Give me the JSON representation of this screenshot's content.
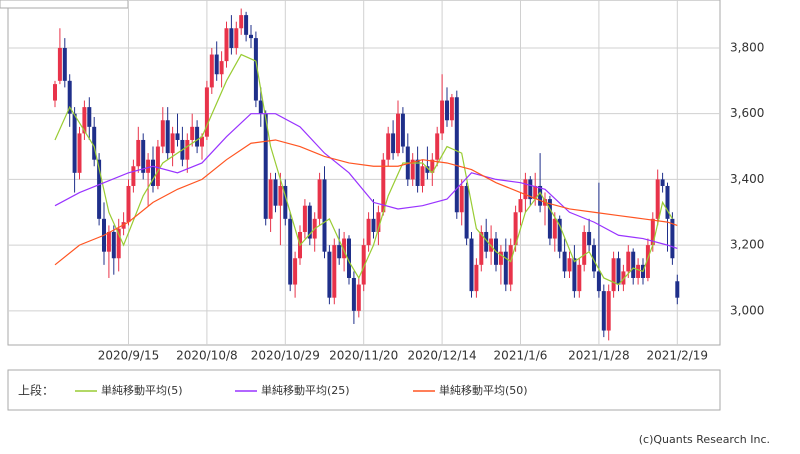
{
  "chart_data": {
    "type": "candlestick",
    "legend_prefix": "上段：",
    "footer": "(c)Quants Research Inc.",
    "up_color": "#e8334a",
    "down_color": "#1f2f8a",
    "ylim": [
      2896,
      3946
    ],
    "yticks": [
      {
        "value": 3000,
        "label": "3,000"
      },
      {
        "value": 3200,
        "label": "3,200"
      },
      {
        "value": 3400,
        "label": "3,400"
      },
      {
        "value": 3600,
        "label": "3,600"
      },
      {
        "value": 3800,
        "label": "3,800"
      }
    ],
    "grid": true,
    "categories": [
      null,
      null,
      null,
      null,
      null,
      null,
      null,
      null,
      null,
      null,
      null,
      null,
      null,
      null,
      null,
      "2020/9/15",
      null,
      null,
      null,
      null,
      null,
      null,
      null,
      null,
      null,
      null,
      null,
      null,
      null,
      null,
      null,
      "2020/10/8",
      null,
      null,
      null,
      null,
      null,
      null,
      null,
      null,
      null,
      null,
      null,
      null,
      null,
      null,
      null,
      "2020/10/29",
      null,
      null,
      null,
      null,
      null,
      null,
      null,
      null,
      null,
      null,
      null,
      null,
      null,
      null,
      null,
      "2020/11/20",
      null,
      null,
      null,
      null,
      null,
      null,
      null,
      null,
      null,
      null,
      null,
      null,
      null,
      null,
      null,
      "2020/12/14",
      null,
      null,
      null,
      null,
      null,
      null,
      null,
      null,
      null,
      null,
      null,
      null,
      null,
      null,
      null,
      "2021/1/6",
      null,
      null,
      null,
      null,
      null,
      null,
      null,
      null,
      null,
      null,
      null,
      null,
      null,
      null,
      null,
      "2021/1/28",
      null,
      null,
      null,
      null,
      null,
      null,
      null,
      null,
      null,
      null,
      null,
      null,
      null,
      null,
      null,
      "2021/2/19"
    ],
    "ohlc": [
      [
        3640,
        3700,
        3620,
        3690
      ],
      [
        3700,
        3860,
        3690,
        3800
      ],
      [
        3800,
        3830,
        3680,
        3700
      ],
      [
        3700,
        3720,
        3560,
        3600
      ],
      [
        3600,
        3620,
        3360,
        3420
      ],
      [
        3420,
        3560,
        3400,
        3540
      ],
      [
        3540,
        3640,
        3520,
        3620
      ],
      [
        3620,
        3650,
        3520,
        3560
      ],
      [
        3560,
        3590,
        3440,
        3460
      ],
      [
        3460,
        3480,
        3260,
        3280
      ],
      [
        3280,
        3330,
        3140,
        3180
      ],
      [
        3180,
        3260,
        3100,
        3240
      ],
      [
        3240,
        3260,
        3110,
        3160
      ],
      [
        3160,
        3280,
        3120,
        3250
      ],
      [
        3250,
        3300,
        3230,
        3270
      ],
      [
        3270,
        3400,
        3260,
        3380
      ],
      [
        3380,
        3460,
        3360,
        3440
      ],
      [
        3440,
        3560,
        3420,
        3520
      ],
      [
        3520,
        3540,
        3400,
        3420
      ],
      [
        3420,
        3480,
        3320,
        3460
      ],
      [
        3460,
        3500,
        3360,
        3380
      ],
      [
        3380,
        3520,
        3370,
        3500
      ],
      [
        3500,
        3620,
        3480,
        3580
      ],
      [
        3580,
        3620,
        3460,
        3480
      ],
      [
        3480,
        3560,
        3440,
        3540
      ],
      [
        3540,
        3600,
        3500,
        3520
      ],
      [
        3520,
        3560,
        3440,
        3460
      ],
      [
        3460,
        3540,
        3420,
        3520
      ],
      [
        3520,
        3600,
        3500,
        3560
      ],
      [
        3560,
        3580,
        3480,
        3500
      ],
      [
        3500,
        3540,
        3460,
        3530
      ],
      [
        3530,
        3700,
        3520,
        3680
      ],
      [
        3680,
        3800,
        3660,
        3780
      ],
      [
        3780,
        3820,
        3700,
        3720
      ],
      [
        3720,
        3790,
        3680,
        3760
      ],
      [
        3760,
        3880,
        3740,
        3860
      ],
      [
        3860,
        3900,
        3780,
        3800
      ],
      [
        3800,
        3880,
        3780,
        3860
      ],
      [
        3860,
        3920,
        3840,
        3900
      ],
      [
        3900,
        3910,
        3820,
        3840
      ],
      [
        3840,
        3870,
        3800,
        3830
      ],
      [
        3830,
        3850,
        3620,
        3640
      ],
      [
        3640,
        3680,
        3560,
        3600
      ],
      [
        3600,
        3610,
        3260,
        3280
      ],
      [
        3280,
        3420,
        3240,
        3400
      ],
      [
        3400,
        3420,
        3300,
        3320
      ],
      [
        3320,
        3420,
        3200,
        3380
      ],
      [
        3380,
        3400,
        3260,
        3280
      ],
      [
        3280,
        3300,
        3060,
        3080
      ],
      [
        3080,
        3180,
        3040,
        3160
      ],
      [
        3160,
        3260,
        3140,
        3240
      ],
      [
        3240,
        3340,
        3220,
        3320
      ],
      [
        3320,
        3330,
        3200,
        3220
      ],
      [
        3220,
        3300,
        3180,
        3280
      ],
      [
        3280,
        3420,
        3260,
        3400
      ],
      [
        3400,
        3440,
        3160,
        3180
      ],
      [
        3180,
        3200,
        3020,
        3040
      ],
      [
        3040,
        3220,
        3020,
        3200
      ],
      [
        3200,
        3250,
        3140,
        3160
      ],
      [
        3160,
        3240,
        3120,
        3220
      ],
      [
        3220,
        3230,
        3080,
        3100
      ],
      [
        3100,
        3120,
        2960,
        3000
      ],
      [
        3000,
        3100,
        2980,
        3080
      ],
      [
        3080,
        3220,
        3060,
        3200
      ],
      [
        3200,
        3300,
        3180,
        3280
      ],
      [
        3280,
        3340,
        3220,
        3240
      ],
      [
        3240,
        3320,
        3200,
        3300
      ],
      [
        3300,
        3480,
        3290,
        3460
      ],
      [
        3460,
        3560,
        3440,
        3540
      ],
      [
        3540,
        3580,
        3460,
        3480
      ],
      [
        3480,
        3640,
        3470,
        3600
      ],
      [
        3600,
        3620,
        3480,
        3500
      ],
      [
        3500,
        3540,
        3380,
        3400
      ],
      [
        3400,
        3480,
        3380,
        3460
      ],
      [
        3460,
        3500,
        3360,
        3380
      ],
      [
        3380,
        3460,
        3360,
        3440
      ],
      [
        3440,
        3500,
        3400,
        3420
      ],
      [
        3420,
        3480,
        3380,
        3460
      ],
      [
        3460,
        3560,
        3440,
        3540
      ],
      [
        3540,
        3720,
        3520,
        3640
      ],
      [
        3640,
        3680,
        3560,
        3580
      ],
      [
        3580,
        3660,
        3560,
        3650
      ],
      [
        3650,
        3670,
        3280,
        3300
      ],
      [
        3300,
        3400,
        3260,
        3380
      ],
      [
        3380,
        3390,
        3200,
        3220
      ],
      [
        3220,
        3240,
        3040,
        3060
      ],
      [
        3060,
        3160,
        3040,
        3140
      ],
      [
        3140,
        3260,
        3120,
        3240
      ],
      [
        3240,
        3280,
        3160,
        3180
      ],
      [
        3180,
        3260,
        3140,
        3220
      ],
      [
        3220,
        3240,
        3120,
        3140
      ],
      [
        3140,
        3200,
        3080,
        3180
      ],
      [
        3180,
        3220,
        3060,
        3080
      ],
      [
        3080,
        3220,
        3060,
        3200
      ],
      [
        3200,
        3320,
        3180,
        3300
      ],
      [
        3300,
        3360,
        3260,
        3340
      ],
      [
        3340,
        3420,
        3300,
        3400
      ],
      [
        3400,
        3410,
        3320,
        3340
      ],
      [
        3340,
        3420,
        3320,
        3380
      ],
      [
        3380,
        3480,
        3300,
        3320
      ],
      [
        3320,
        3360,
        3260,
        3340
      ],
      [
        3340,
        3350,
        3200,
        3220
      ],
      [
        3220,
        3300,
        3180,
        3280
      ],
      [
        3280,
        3290,
        3160,
        3180
      ],
      [
        3180,
        3220,
        3100,
        3120
      ],
      [
        3120,
        3180,
        3100,
        3160
      ],
      [
        3160,
        3200,
        3040,
        3060
      ],
      [
        3060,
        3160,
        3040,
        3140
      ],
      [
        3140,
        3260,
        3120,
        3240
      ],
      [
        3240,
        3280,
        3180,
        3200
      ],
      [
        3200,
        3220,
        3100,
        3120
      ],
      [
        3120,
        3390,
        3040,
        3060
      ],
      [
        3060,
        3080,
        2920,
        2940
      ],
      [
        2940,
        3080,
        2910,
        3060
      ],
      [
        3060,
        3180,
        3040,
        3160
      ],
      [
        3160,
        3180,
        3060,
        3080
      ],
      [
        3080,
        3140,
        3060,
        3120
      ],
      [
        3120,
        3200,
        3100,
        3180
      ],
      [
        3180,
        3190,
        3080,
        3100
      ],
      [
        3100,
        3160,
        3080,
        3140
      ],
      [
        3140,
        3160,
        3080,
        3100
      ],
      [
        3100,
        3220,
        3090,
        3200
      ],
      [
        3200,
        3300,
        3180,
        3280
      ],
      [
        3280,
        3430,
        3260,
        3400
      ],
      [
        3400,
        3420,
        3360,
        3380
      ],
      [
        3380,
        3390,
        3180,
        3280
      ],
      [
        3280,
        3300,
        3140,
        3160
      ],
      [
        3090,
        3110,
        3020,
        3040
      ]
    ],
    "series": [
      {
        "name": "単純移動平均(5)",
        "color": "#99cc33",
        "x": [
          0,
          3,
          8,
          11,
          14,
          18,
          22,
          27,
          30,
          35,
          38,
          41,
          44,
          47,
          50,
          53,
          56,
          60,
          62,
          65,
          68,
          71,
          75,
          77,
          80,
          83,
          86,
          90,
          93,
          96,
          99,
          103,
          106,
          109,
          112,
          115,
          118,
          120,
          122,
          124,
          126
        ],
        "values": [
          3520,
          3620,
          3500,
          3300,
          3200,
          3350,
          3450,
          3500,
          3530,
          3700,
          3780,
          3760,
          3500,
          3350,
          3200,
          3250,
          3280,
          3150,
          3100,
          3200,
          3350,
          3450,
          3450,
          3420,
          3500,
          3480,
          3250,
          3180,
          3150,
          3300,
          3360,
          3260,
          3150,
          3180,
          3100,
          3080,
          3130,
          3120,
          3200,
          3330,
          3280
        ]
      },
      {
        "name": "単純移動平均(25)",
        "color": "#9933ff",
        "x": [
          0,
          5,
          10,
          15,
          20,
          25,
          30,
          35,
          40,
          45,
          50,
          55,
          60,
          65,
          70,
          75,
          80,
          85,
          90,
          95,
          100,
          105,
          110,
          115,
          120,
          125,
          127
        ],
        "values": [
          3320,
          3360,
          3390,
          3420,
          3440,
          3420,
          3450,
          3530,
          3600,
          3600,
          3560,
          3480,
          3420,
          3330,
          3310,
          3320,
          3340,
          3420,
          3400,
          3390,
          3370,
          3300,
          3270,
          3230,
          3220,
          3200,
          3190
        ]
      },
      {
        "name": "単純移動平均(50)",
        "color": "#ff5522",
        "x": [
          0,
          5,
          10,
          15,
          20,
          25,
          30,
          35,
          40,
          45,
          50,
          55,
          60,
          65,
          70,
          75,
          80,
          85,
          90,
          95,
          100,
          105,
          110,
          115,
          120,
          125,
          127
        ],
        "values": [
          3140,
          3200,
          3230,
          3270,
          3330,
          3370,
          3400,
          3460,
          3510,
          3520,
          3500,
          3470,
          3450,
          3440,
          3440,
          3460,
          3450,
          3430,
          3390,
          3360,
          3330,
          3310,
          3300,
          3290,
          3280,
          3270,
          3260
        ]
      }
    ]
  }
}
